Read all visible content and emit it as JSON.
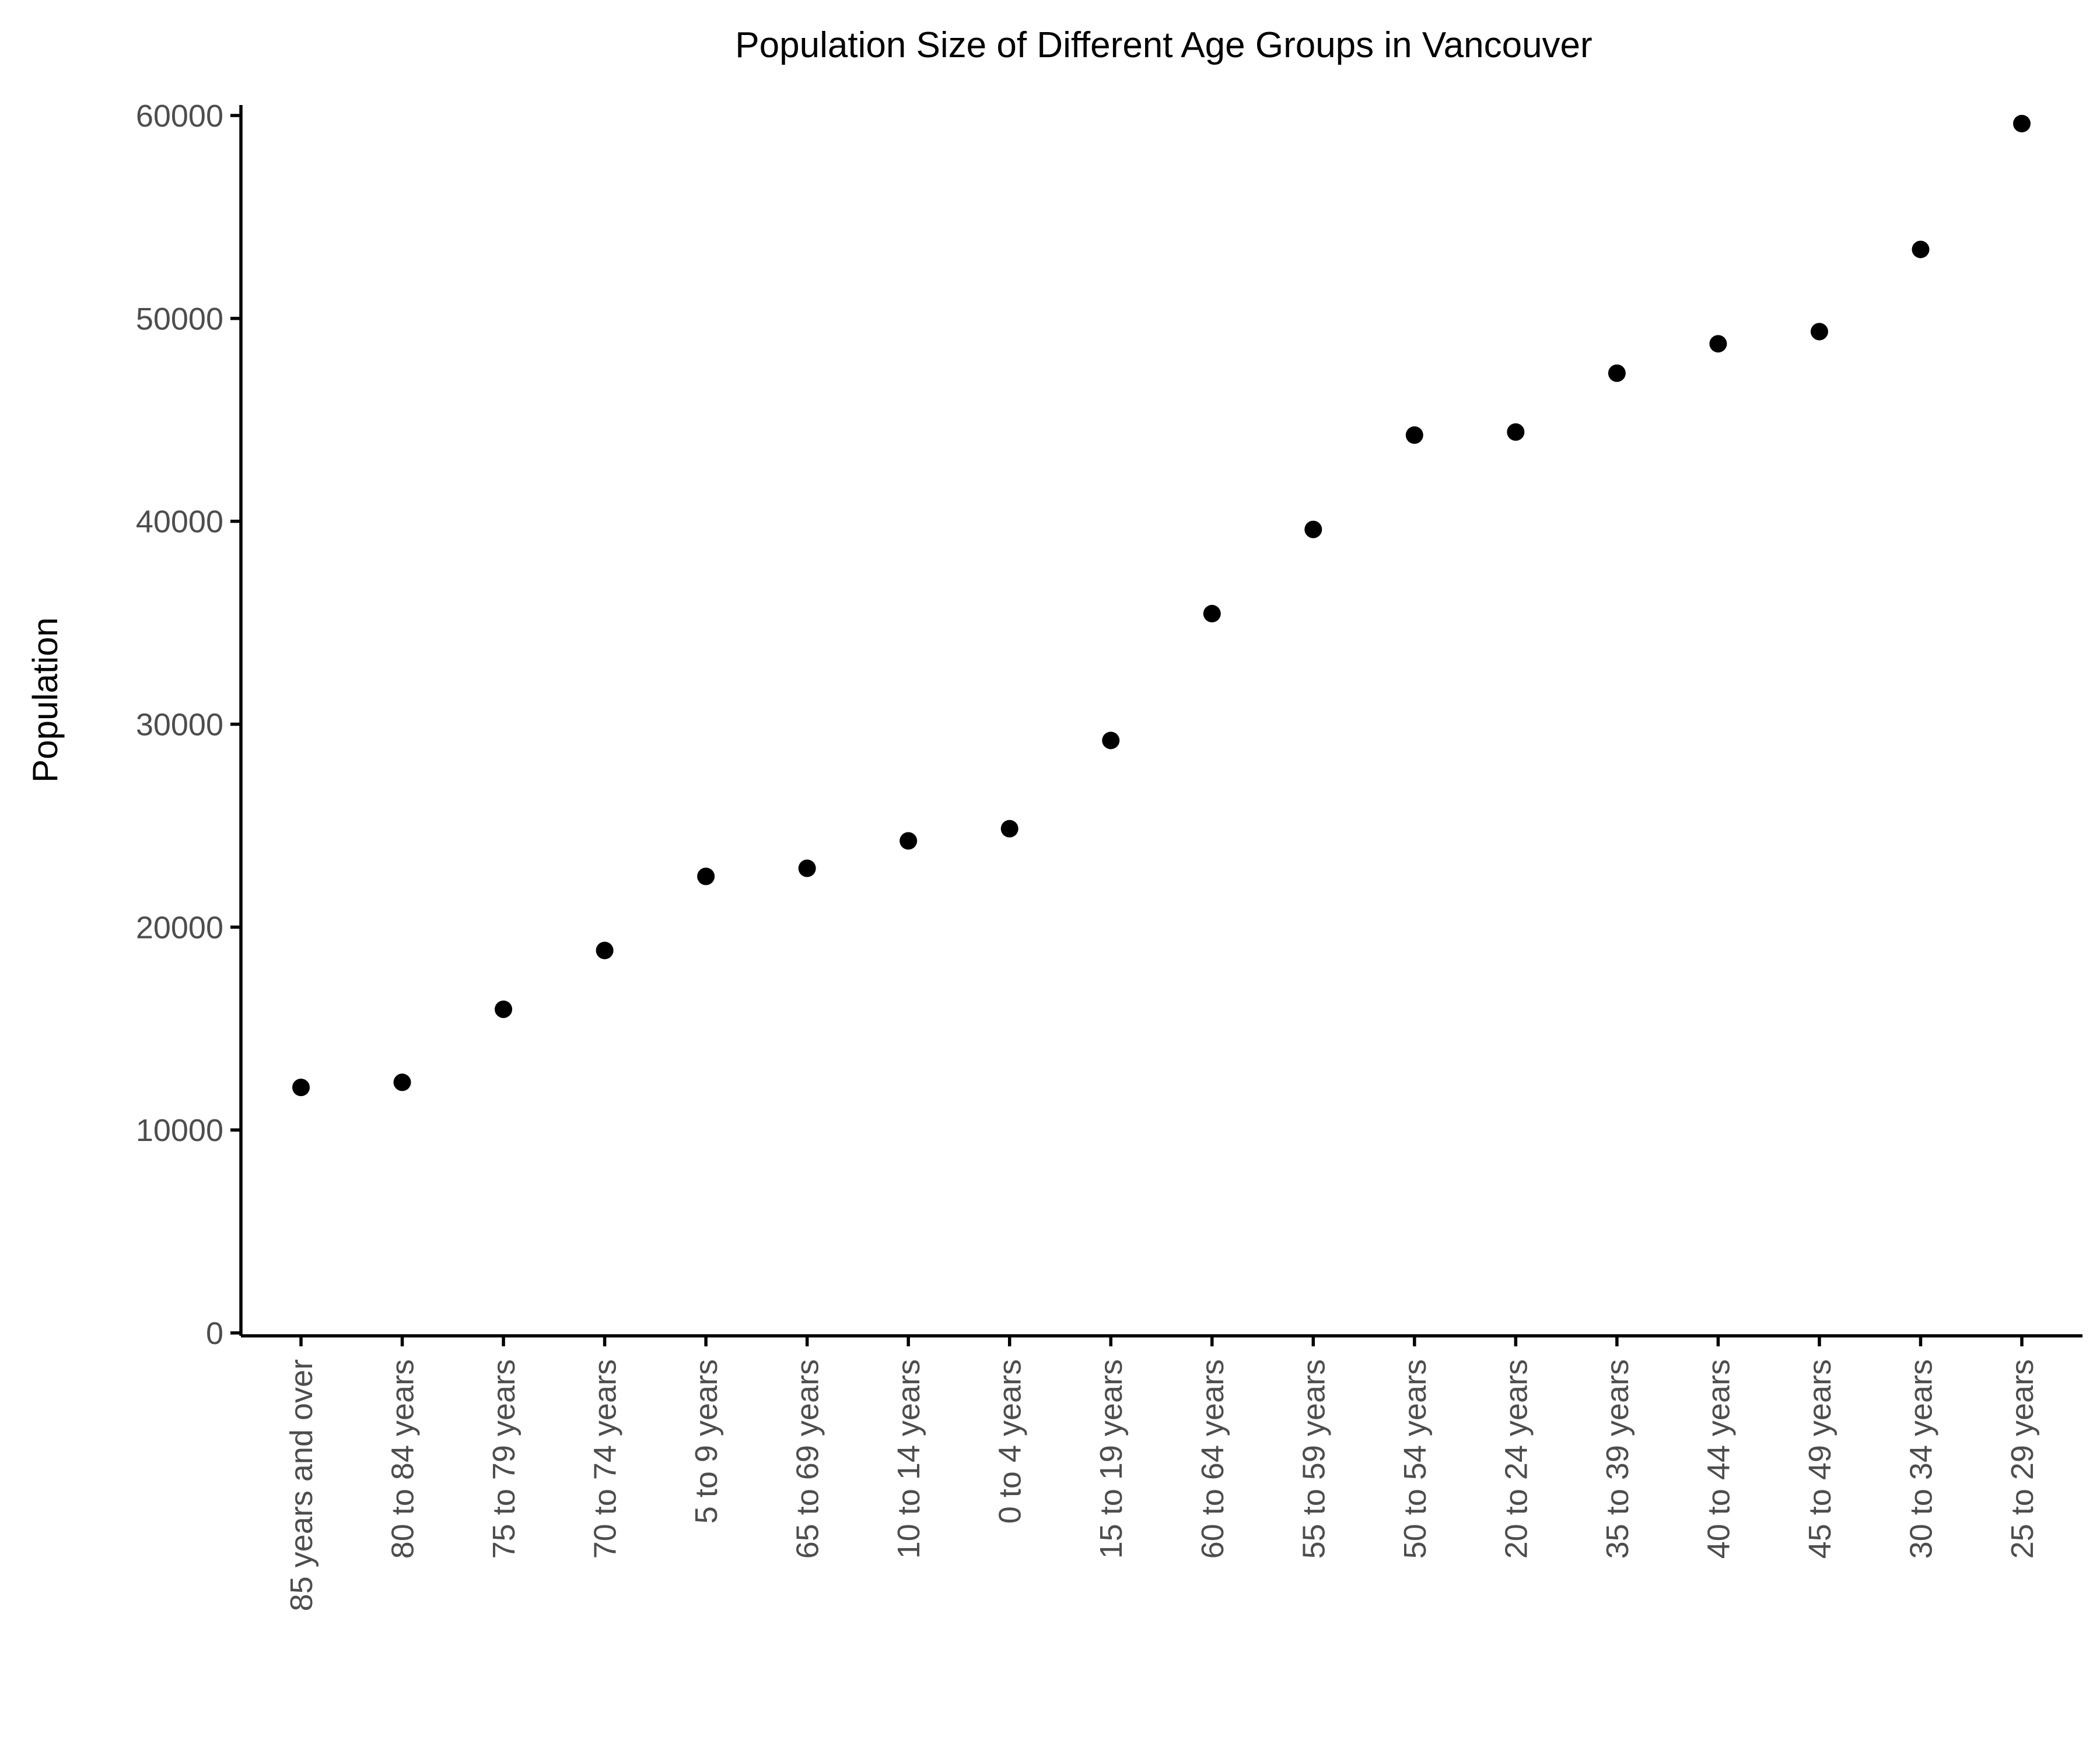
{
  "chart_data": {
    "type": "scatter",
    "title": "Population Size of Different Age Groups in Vancouver",
    "xlabel": "",
    "ylabel": "Population",
    "ylim": [
      0,
      60000
    ],
    "yticks": [
      0,
      10000,
      20000,
      30000,
      40000,
      50000,
      60000
    ],
    "grid": false,
    "legend": "none",
    "point_color": "#000000",
    "categories": [
      "85 years and over",
      "80 to 84 years",
      "75 to 79 years",
      "70 to 74 years",
      "5 to 9 years",
      "65 to 69 years",
      "10 to 14 years",
      "0 to 4 years",
      "15 to 19 years",
      "60 to 64 years",
      "55 to 59 years",
      "50 to 54 years",
      "20 to 24 years",
      "35 to 39 years",
      "40 to 44 years",
      "45 to 49 years",
      "30 to 34 years",
      "25 to 29 years"
    ],
    "values": [
      12100,
      12350,
      15950,
      18850,
      22500,
      22900,
      24250,
      24850,
      29200,
      35450,
      39600,
      44250,
      44400,
      47300,
      48750,
      49350,
      53400,
      59600
    ]
  }
}
